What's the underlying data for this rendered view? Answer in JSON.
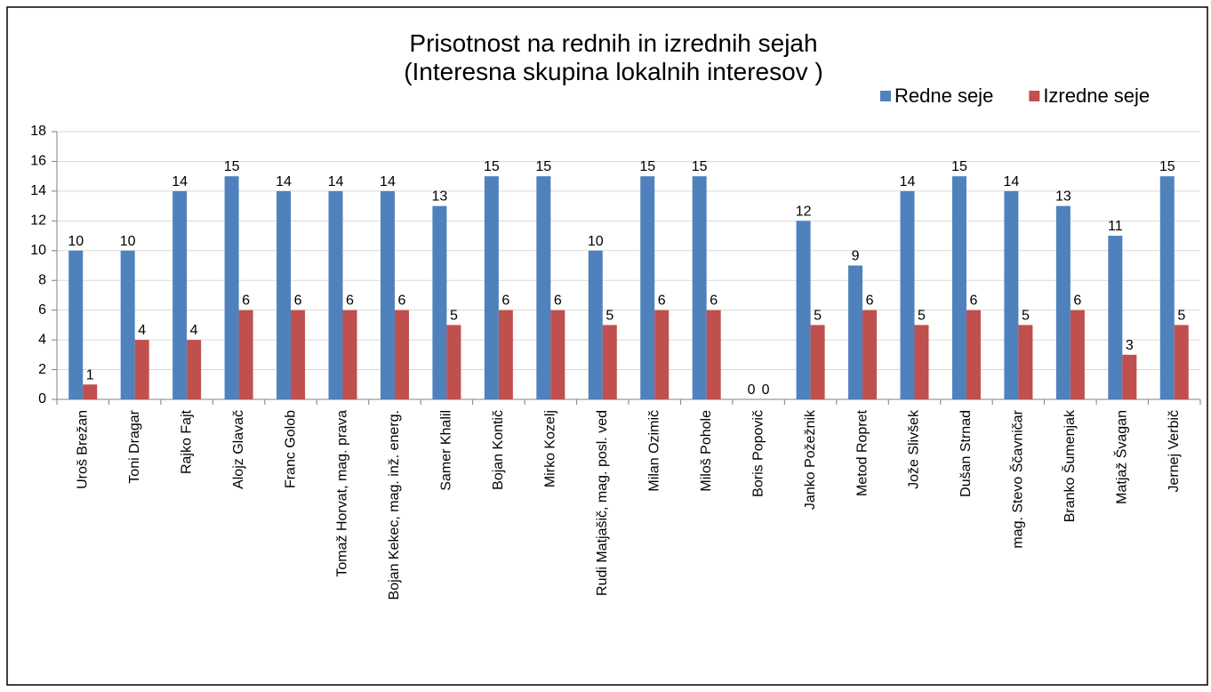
{
  "chart_data": {
    "type": "bar",
    "title": [
      "Prisotnost na rednih in izrednih sejah",
      "(Interesna skupina lokalnih interesov )"
    ],
    "categories": [
      "Uroš Brežan",
      "Toni Dragar",
      "Rajko Fajt",
      "Alojz Glavač",
      "Franc Golob",
      "Tomaž Horvat, mag. prava",
      "Bojan Kekec, mag. inž. energ.",
      "Samer Khalil",
      "Bojan Kontič",
      "Mirko Kozelj",
      "Rudi Matjašič, mag. posl. ved",
      "Milan Ozimič",
      "Miloš Pohole",
      "Boris Popovič",
      "Janko Požežnik",
      "Metod Ropret",
      "Jože Slivšek",
      "Dušan Strnad",
      "mag. Stevo Ščavničar",
      "Branko Šumenjak",
      "Matjaž Švagan",
      "Jernej Verbič"
    ],
    "series": [
      {
        "name": "Redne seje",
        "color": "#4f81bd",
        "values": [
          10,
          10,
          14,
          15,
          14,
          14,
          14,
          13,
          15,
          15,
          10,
          15,
          15,
          0,
          12,
          9,
          14,
          15,
          14,
          13,
          11,
          15
        ]
      },
      {
        "name": "Izredne seje",
        "color": "#c0504d",
        "values": [
          1,
          4,
          4,
          6,
          6,
          6,
          6,
          5,
          6,
          6,
          5,
          6,
          6,
          0,
          5,
          6,
          5,
          6,
          5,
          6,
          3,
          5
        ]
      }
    ],
    "ylim": [
      0,
      18
    ],
    "yticks": [
      0,
      2,
      4,
      6,
      8,
      10,
      12,
      14,
      16,
      18
    ],
    "grid": true,
    "legend": "top-right"
  }
}
